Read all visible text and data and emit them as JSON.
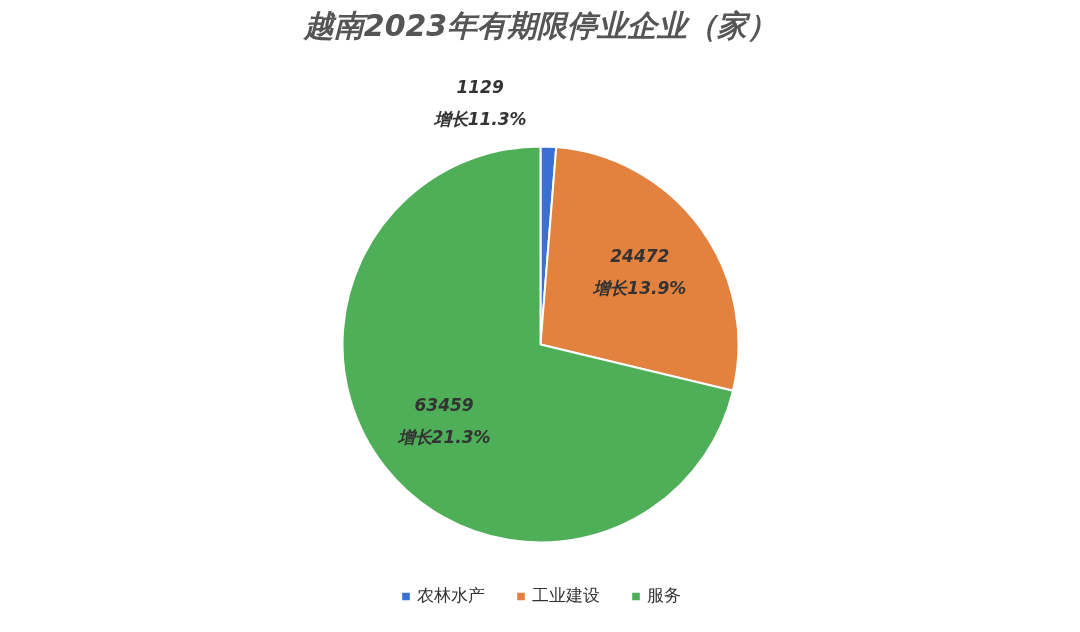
{
  "chart_data": {
    "type": "pie",
    "title": "越南2023年有期限停业企业（家）",
    "categories": [
      "农林水产",
      "工业建设",
      "服务"
    ],
    "values": [
      1129,
      24472,
      63459
    ],
    "colors": [
      "#3b6fd1",
      "#e3813f",
      "#4fae58"
    ],
    "value_labels": [
      "1129\n增长11.3%",
      "24472\n增长13.9%",
      "63459\n增长21.3%"
    ],
    "legend": "bottom"
  }
}
